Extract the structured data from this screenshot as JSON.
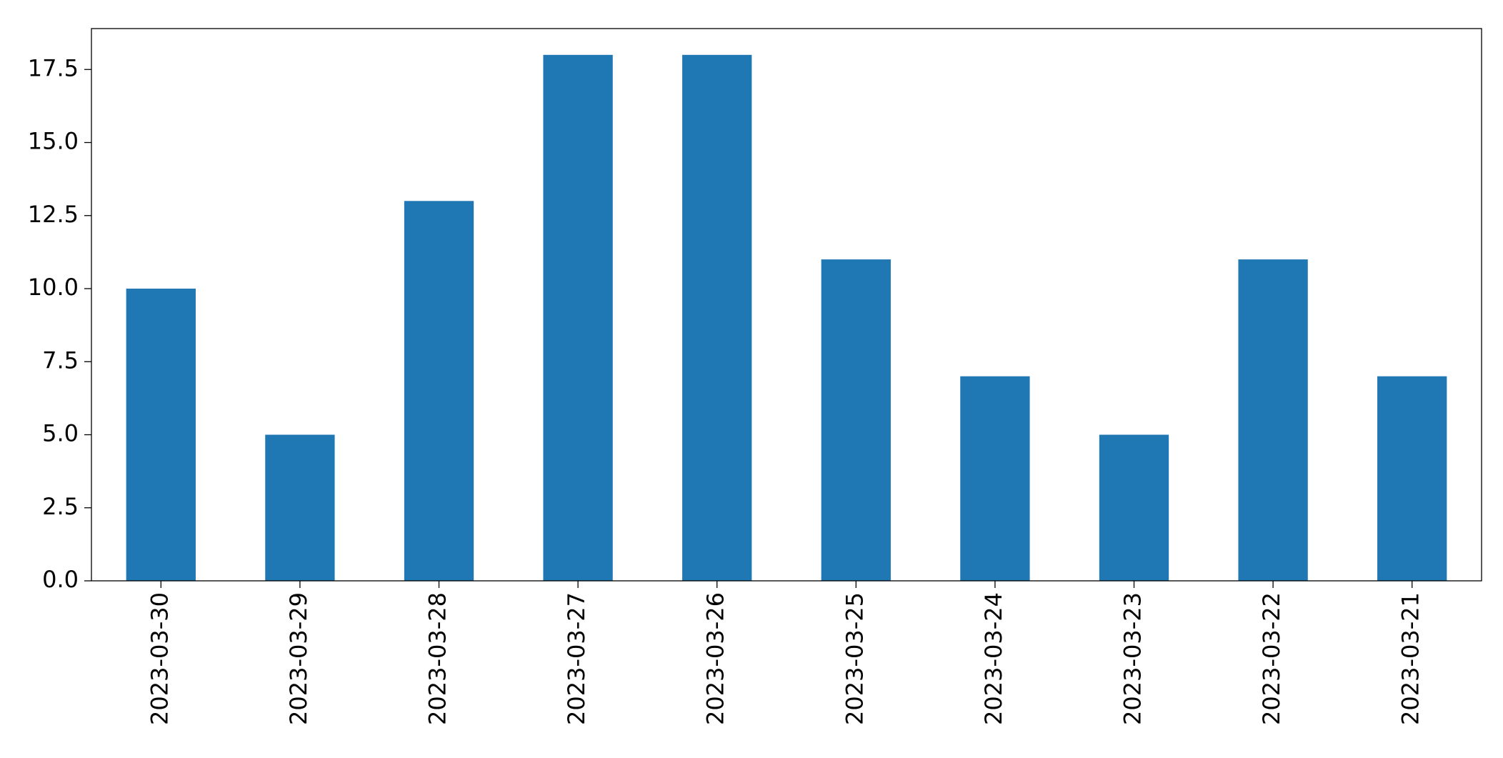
{
  "chart_data": {
    "type": "bar",
    "categories": [
      "2023-03-30",
      "2023-03-29",
      "2023-03-28",
      "2023-03-27",
      "2023-03-26",
      "2023-03-25",
      "2023-03-24",
      "2023-03-23",
      "2023-03-22",
      "2023-03-21"
    ],
    "values": [
      10,
      5,
      13,
      18,
      18,
      11,
      7,
      5,
      11,
      7
    ],
    "color": "#1f77b4",
    "ylim": [
      0,
      18.9
    ],
    "yticks": [
      {
        "value": 0,
        "label": "0.0"
      },
      2.5,
      {
        "value": 5,
        "label": "5.0"
      },
      7.5,
      {
        "value": 10,
        "label": "10.0"
      },
      12.5,
      {
        "value": 15,
        "label": "15.0"
      },
      17.5
    ],
    "grid": false
  }
}
